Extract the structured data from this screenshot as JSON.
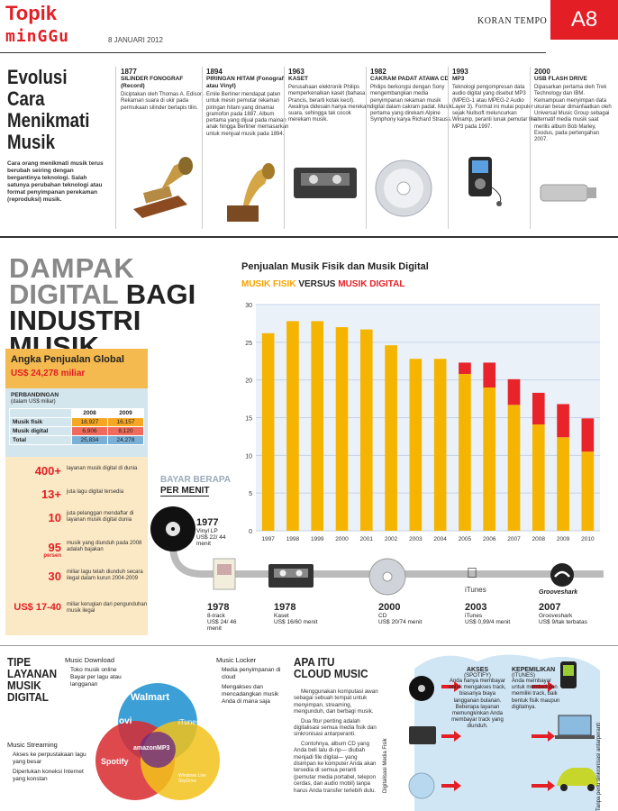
{
  "header": {
    "section": "Topik",
    "sub": "minGGu",
    "date": "8 JANUARI 2012",
    "paper": "KORAN TEMPO",
    "page": "A8"
  },
  "intro": {
    "title_lines": [
      "Evolusi",
      "Cara",
      "Menikmati",
      "Musik"
    ],
    "desc": "Cara orang menikmati musik terus berubah seiring dengan bergantinya teknologi. Salah satunya perubahan teknologi atau format penyimpanan perekaman (reproduksi) musik."
  },
  "timeline": [
    {
      "year": "1877",
      "title": "SILINDER FONOGRAF (Record)",
      "desc": "Diciptakan oleh Thomas A. Edison. Rekaman suara di ukir pada permukaan silinder berlapis tilin."
    },
    {
      "year": "1894",
      "title": "PIRINGAN HITAM (Fonograf atau Vinyl)",
      "desc": "Emile Berliner mendapat paten untuk mesin pemutar rekaman piringan hitam yang dinamai gramofon pada 1887. Album pertama yang dijual pada mainan anak hingga Berliner memasarkan untuk menjual musik pada 1894."
    },
    {
      "year": "1963",
      "title": "KASET",
      "desc": "Perusahaan elektronik Philips memperkenalkan kaset (bahasa Prancis, berarti kotak kecil). Awalnya didesain hanya merekam suara, sehingga tak cocok merekam musik."
    },
    {
      "year": "1982",
      "title": "CAKRAM PADAT ATAWA CD",
      "desc": "Philips berkongsi dengan Sony mengembangkan media penyimpanan rekaman musik digital dalam cakram padat. Musik pertama yang direkam Alpine Symphony karya Richard Strauss."
    },
    {
      "year": "1993",
      "title": "MP3",
      "desc": "Teknologi pengompresan data audio digital yang disebut MP3 (MPEG-1 atau MPEG-2 Audio Layer 3). Format ini mulai populer sejak Nullsoft meluncurkan Winamp, peranti lunak pemutar file MP3 pada 1997."
    },
    {
      "year": "2000",
      "title": "USB FLASH DRIVE",
      "desc": "Dipasarkan pertama oleh Trek Technology dan IBM. Kemampuan menyimpan data ukuran besar dimanfaatkan oleh Universal Music Group sebagai alternatif media musik saat merilis album Bob Marley, Exodus, pada pertengahan 2007."
    }
  ],
  "impact": {
    "line1": "DAMPAK",
    "line2a": "DIGITAL",
    "line2b": "BAGI",
    "line3": "INDUSTRI MUSIK"
  },
  "global": {
    "title": "Angka Penjualan Global",
    "amount": "US$ 24,278 miliar",
    "compare_label": "PERBANDINGAN",
    "compare_unit": "(dalam US$ miliar)",
    "table": {
      "headers": [
        "",
        "2008",
        "2009"
      ],
      "rows": [
        [
          "Musik fisik",
          "18,927",
          "16,157"
        ],
        [
          "Musik digital",
          "6,906",
          "8,120"
        ],
        [
          "Total",
          "25,834",
          "24,278"
        ]
      ]
    },
    "stats": [
      {
        "num": "400+",
        "unit": "",
        "text": "layanan musik digital di dunia"
      },
      {
        "num": "13+",
        "unit": "",
        "text": "juta lagu digital tersedia"
      },
      {
        "num": "10",
        "unit": "",
        "text": "juta pelanggan mendaftar di layanan musik digital dunia"
      },
      {
        "num": "95",
        "unit": "persen",
        "text": "musik yang diunduh pada 2008 adalah bajakan"
      },
      {
        "num": "30",
        "unit": "",
        "text": "miliar lagu telah diunduh secara ilegal dalam kurun 2004-2009"
      },
      {
        "num": "US$ 17-40",
        "unit": "",
        "text": "miliar kerugian dari pengunduhan musik ilegal"
      }
    ]
  },
  "chart_data": {
    "type": "bar",
    "title": "Penjualan Musik Fisik dan Musik Digital",
    "subtitle_a": "MUSIK FISIK",
    "subtitle_versus": "VERSUS",
    "subtitle_b": "MUSIK DIGITAL",
    "categories": [
      "1997",
      "1998",
      "1999",
      "2000",
      "2001",
      "2002",
      "2003",
      "2004",
      "2005",
      "2006",
      "2007",
      "2008",
      "2009",
      "2010"
    ],
    "series": [
      {
        "name": "Musik fisik",
        "color": "#f5b400",
        "values": [
          26.2,
          27.8,
          27.8,
          27.0,
          26.7,
          24.6,
          22.8,
          22.8,
          20.8,
          19.0,
          16.7,
          14.1,
          12.4,
          10.5
        ]
      },
      {
        "name": "Musik digital",
        "color": "#e8232a",
        "values": [
          0,
          0,
          0,
          0,
          0,
          0,
          0,
          0,
          1.5,
          3.3,
          3.4,
          4.2,
          4.4,
          4.4
        ]
      }
    ],
    "ylim": [
      0,
      30
    ],
    "yticks": [
      "0",
      "5",
      "10",
      "15",
      "20",
      "25",
      "30"
    ]
  },
  "pay": {
    "title_a": "BAYAR BERAPA",
    "title_b": "PER MENIT",
    "items": [
      {
        "year": "1977",
        "name": "Vinyl LP",
        "price": "US$ 22/ 44 menit"
      },
      {
        "year": "1978",
        "name": "8-track",
        "price": "US$ 24/ 46 menit"
      },
      {
        "year": "1978",
        "name": "Kaset",
        "price": "US$ 16/60 menit"
      },
      {
        "year": "2000",
        "name": "CD",
        "price": "US$ 20/74 menit"
      },
      {
        "year": "2003",
        "name": "iTunes",
        "price": "US$ 0,99/4 menit"
      },
      {
        "year": "2007",
        "name": "Grooveshark",
        "price": "US$ 9/tak terbatas"
      }
    ],
    "itunes_label": "iTunes",
    "grooveshark_label": "Grooveshark"
  },
  "types": {
    "title_lines": [
      "TIPE",
      "LAYANAN",
      "MUSIK",
      "DIGITAL"
    ],
    "download": {
      "title": "Music Download",
      "items": [
        "Toko musik online",
        "Bayar per lagu atau langganan"
      ]
    },
    "locker": {
      "title": "Music Locker",
      "items": [
        "Media penyimpanan di cloud",
        "Mengakses dan mencadangkan musik Anda di mana saja"
      ]
    },
    "streaming": {
      "title": "Music Streaming",
      "items": [
        "Akses ke perpustakaan lagu yang besar",
        "Diperlukan koneksi Internet yang konstan"
      ]
    },
    "logos": {
      "walmart": "Walmart",
      "ovi": "ovi",
      "itunes": "iTunes",
      "amazon": "amazonMP3",
      "spotify": "Spotify",
      "wlt": "Windows Live SkyDrive"
    }
  },
  "cloud": {
    "title_lines": [
      "APA ITU",
      "CLOUD MUSIC"
    ],
    "p1": "Menggunakan komputasi awan sebagai sebuah tempat untuk menyimpan, streaming, mengunduh, dan berbagi musik.",
    "p2": "Dua fitur penting adalah digitalisasi semua media fisik dan sinkronisasi antarperanti.",
    "p3": "Contohnya, album CD yang Anda beli lalu di-rip— diubah menjadi file digital— yang disimpan ke komputer Anda akan tersedia di semua peranti (pemutar media portabel, telepon cerdas, dan audio mobil) tanpa harus Anda transfer terlebih dulu."
  },
  "access": {
    "side_left": "Digitalisasi Media Fisik",
    "side_right": "Tanpa perlu sinkronisasi antarperanti",
    "akses_title": "AKSES",
    "akses_sub": "(SPOTIFY)",
    "akses_text": "Anda hanya membayar untuk mengakses track, biasanya biaya langganan bulanan. Beberapa layanan memungkinkan Anda membayar track yang diunduh.",
    "milik_title": "KEPEMILIKAN",
    "milik_sub": "(ITUNES)",
    "milik_text": "Anda membayar untuk membeli dan memiliki track, baik bentuk fisik maupun digitalnya."
  }
}
